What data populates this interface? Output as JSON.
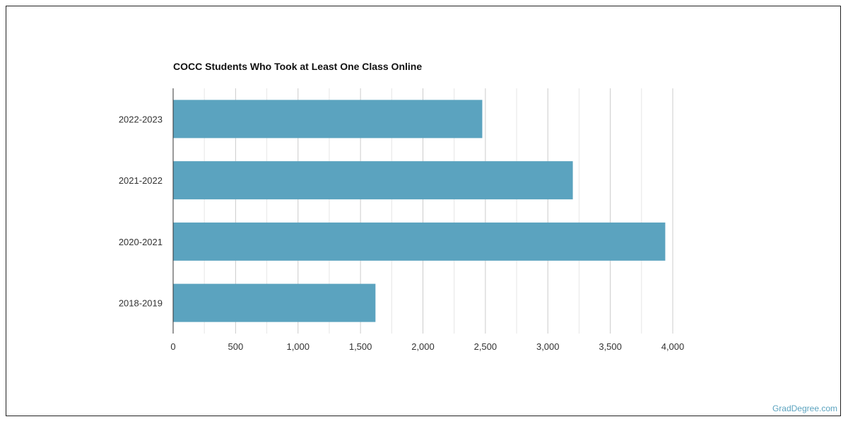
{
  "chart_data": {
    "type": "bar",
    "orientation": "horizontal",
    "title": "COCC Students Who Took at Least One Class Online",
    "categories": [
      "2022-2023",
      "2021-2022",
      "2020-2021",
      "2018-2019"
    ],
    "values": [
      2475,
      3200,
      3940,
      1620
    ],
    "xlim": [
      0,
      4000
    ],
    "xticks": [
      0,
      500,
      1000,
      1500,
      2000,
      2500,
      3000,
      3500,
      4000
    ],
    "xtick_labels": [
      "0",
      "500",
      "1,000",
      "1,500",
      "2,000",
      "2,500",
      "3,000",
      "3,500",
      "4,000"
    ],
    "xlabel": "",
    "ylabel": "",
    "grid": true,
    "bar_color": "#5ba3bf"
  },
  "footer": {
    "source": "GradDegree.com"
  }
}
